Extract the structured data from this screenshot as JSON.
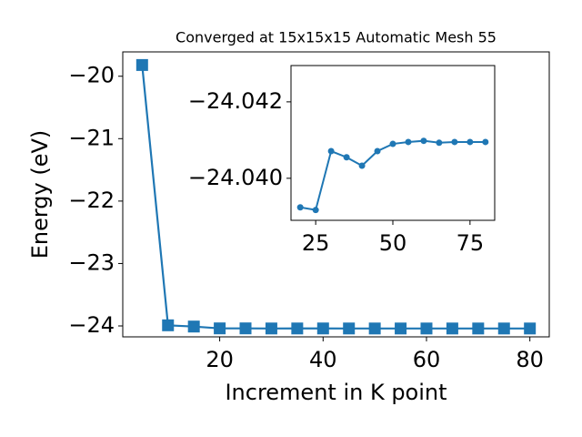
{
  "chart_data": [
    {
      "type": "line",
      "title": "Converged at 15x15x15 Automatic Mesh 55",
      "x_label": "Increment in K point",
      "y_label": "Energy (eV)",
      "x": [
        5,
        10,
        15,
        20,
        25,
        30,
        35,
        40,
        45,
        50,
        55,
        60,
        65,
        70,
        75,
        80
      ],
      "series": [
        {
          "color": "#1f77b4",
          "marker": "square",
          "values": [
            -19.82,
            -23.99,
            -24.01,
            -24.03924,
            -24.03917,
            -24.04071,
            -24.04055,
            -24.04033,
            -24.04071,
            -24.0409,
            -24.04095,
            -24.04098,
            -24.04093,
            -24.04095,
            -24.04095,
            -24.04095
          ]
        }
      ],
      "xlim": [
        1.25,
        83.75
      ],
      "xticks": [
        20,
        40,
        60,
        80
      ],
      "ylim": [
        -24.175,
        -19.61
      ],
      "yticks": [
        {
          "value": -24,
          "label": "−24"
        },
        {
          "value": -23,
          "label": "−23"
        },
        {
          "value": -22,
          "label": "−22"
        },
        {
          "value": -21,
          "label": "−21"
        },
        {
          "value": -20,
          "label": "−20"
        }
      ]
    },
    {
      "type": "line",
      "x": [
        20,
        25,
        30,
        35,
        40,
        45,
        50,
        55,
        60,
        65,
        70,
        75,
        80
      ],
      "series": [
        {
          "color": "#1f77b4",
          "marker": "circle",
          "values": [
            -24.03924,
            -24.03917,
            -24.04071,
            -24.04055,
            -24.04033,
            -24.04071,
            -24.0409,
            -24.04095,
            -24.04098,
            -24.04093,
            -24.04095,
            -24.04095,
            -24.04095
          ]
        }
      ],
      "xlim": [
        17,
        83
      ],
      "xticks": [
        25,
        50,
        75
      ],
      "ylim": [
        -24.0389,
        -24.04295
      ],
      "yticks": [
        {
          "value": -24.04,
          "label": "−24.040"
        },
        {
          "value": -24.042,
          "label": "−24.042"
        }
      ]
    }
  ]
}
